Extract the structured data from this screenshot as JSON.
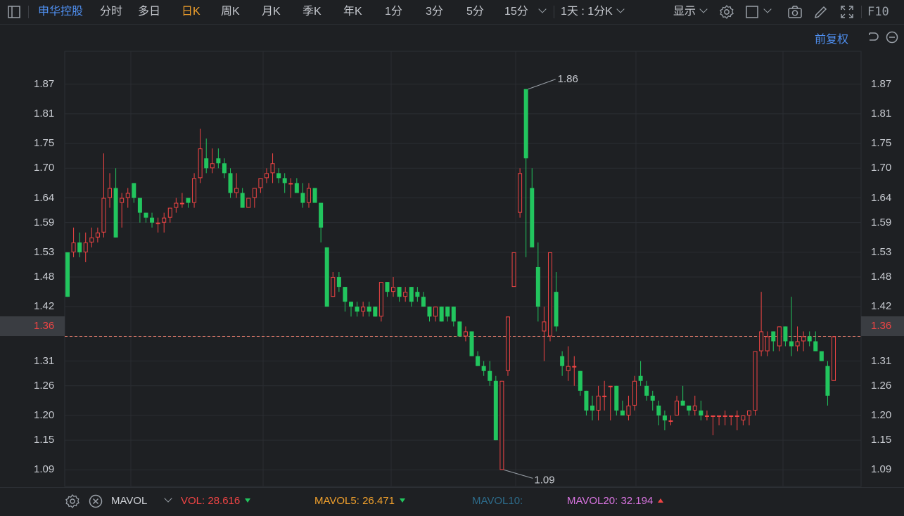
{
  "toolbar": {
    "stock_name": "申华控股",
    "periods": [
      "分时",
      "多日",
      "日K",
      "周K",
      "月K",
      "季K",
      "年K",
      "1分",
      "3分",
      "5分",
      "15分"
    ],
    "active_period": "日K",
    "multi_period": "1天 : 1分K",
    "display": "显示",
    "f10": "F10"
  },
  "adjust_label": "前复权",
  "current_price": "1.36",
  "colors": {
    "up": "#ef4444",
    "down": "#22c55e",
    "accent": "#f0a02c",
    "link": "#4f8ff0"
  },
  "chart_data": {
    "type": "candlestick",
    "title": "",
    "y_ticks": [
      "1.87",
      "1.81",
      "1.75",
      "1.70",
      "1.64",
      "1.59",
      "1.53",
      "1.48",
      "1.42",
      "1.36",
      "1.31",
      "1.26",
      "1.20",
      "1.15",
      "1.09"
    ],
    "ylim": [
      1.055,
      1.935
    ],
    "high_marker": "1.86",
    "low_marker": "1.09",
    "current_line": 1.36,
    "candles": [
      [
        1.53,
        1.44,
        1.53,
        1.44
      ],
      [
        1.53,
        1.55,
        1.58,
        1.52
      ],
      [
        1.55,
        1.53,
        1.57,
        1.52
      ],
      [
        1.53,
        1.55,
        1.57,
        1.51
      ],
      [
        1.55,
        1.56,
        1.58,
        1.54
      ],
      [
        1.56,
        1.57,
        1.58,
        1.55
      ],
      [
        1.57,
        1.64,
        1.73,
        1.56
      ],
      [
        1.64,
        1.66,
        1.69,
        1.62
      ],
      [
        1.66,
        1.56,
        1.7,
        1.56
      ],
      [
        1.63,
        1.64,
        1.65,
        1.58
      ],
      [
        1.64,
        1.65,
        1.66,
        1.62
      ],
      [
        1.67,
        1.64,
        1.67,
        1.63
      ],
      [
        1.64,
        1.61,
        1.64,
        1.59
      ],
      [
        1.61,
        1.6,
        1.61,
        1.59
      ],
      [
        1.6,
        1.59,
        1.61,
        1.58
      ],
      [
        1.59,
        1.59,
        1.6,
        1.57
      ],
      [
        1.59,
        1.6,
        1.61,
        1.57
      ],
      [
        1.6,
        1.62,
        1.62,
        1.59
      ],
      [
        1.62,
        1.63,
        1.64,
        1.61
      ],
      [
        1.63,
        1.63,
        1.65,
        1.62
      ],
      [
        1.64,
        1.63,
        1.64,
        1.62
      ],
      [
        1.63,
        1.68,
        1.69,
        1.62
      ],
      [
        1.68,
        1.74,
        1.78,
        1.67
      ],
      [
        1.72,
        1.7,
        1.76,
        1.69
      ],
      [
        1.7,
        1.71,
        1.74,
        1.69
      ],
      [
        1.72,
        1.71,
        1.74,
        1.7
      ],
      [
        1.71,
        1.69,
        1.72,
        1.68
      ],
      [
        1.69,
        1.65,
        1.7,
        1.64
      ],
      [
        1.65,
        1.66,
        1.69,
        1.64
      ],
      [
        1.65,
        1.62,
        1.66,
        1.62
      ],
      [
        1.62,
        1.64,
        1.64,
        1.62
      ],
      [
        1.64,
        1.66,
        1.66,
        1.62
      ],
      [
        1.66,
        1.68,
        1.68,
        1.65
      ],
      [
        1.68,
        1.69,
        1.7,
        1.67
      ],
      [
        1.69,
        1.71,
        1.73,
        1.67
      ],
      [
        1.69,
        1.68,
        1.7,
        1.67
      ],
      [
        1.68,
        1.67,
        1.69,
        1.65
      ],
      [
        1.67,
        1.67,
        1.68,
        1.64
      ],
      [
        1.67,
        1.65,
        1.68,
        1.65
      ],
      [
        1.65,
        1.63,
        1.67,
        1.62
      ],
      [
        1.63,
        1.66,
        1.67,
        1.62
      ],
      [
        1.66,
        1.63,
        1.66,
        1.63
      ],
      [
        1.63,
        1.58,
        1.63,
        1.55
      ],
      [
        1.54,
        1.42,
        1.54,
        1.42
      ],
      [
        1.44,
        1.48,
        1.49,
        1.44
      ],
      [
        1.48,
        1.46,
        1.49,
        1.45
      ],
      [
        1.46,
        1.43,
        1.46,
        1.41
      ],
      [
        1.43,
        1.42,
        1.43,
        1.4
      ],
      [
        1.42,
        1.41,
        1.43,
        1.4
      ],
      [
        1.41,
        1.42,
        1.43,
        1.4
      ],
      [
        1.42,
        1.41,
        1.43,
        1.4
      ],
      [
        1.42,
        1.4,
        1.42,
        1.4
      ],
      [
        1.4,
        1.47,
        1.47,
        1.39
      ],
      [
        1.47,
        1.45,
        1.47,
        1.44
      ],
      [
        1.45,
        1.46,
        1.48,
        1.44
      ],
      [
        1.46,
        1.44,
        1.46,
        1.43
      ],
      [
        1.44,
        1.45,
        1.46,
        1.43
      ],
      [
        1.46,
        1.43,
        1.46,
        1.42
      ],
      [
        1.45,
        1.44,
        1.46,
        1.43
      ],
      [
        1.44,
        1.42,
        1.45,
        1.42
      ],
      [
        1.42,
        1.4,
        1.42,
        1.39
      ],
      [
        1.4,
        1.42,
        1.42,
        1.39
      ],
      [
        1.42,
        1.39,
        1.42,
        1.39
      ],
      [
        1.42,
        1.4,
        1.42,
        1.39
      ],
      [
        1.42,
        1.39,
        1.42,
        1.38
      ],
      [
        1.39,
        1.36,
        1.39,
        1.36
      ],
      [
        1.36,
        1.37,
        1.38,
        1.35
      ],
      [
        1.37,
        1.32,
        1.37,
        1.32
      ],
      [
        1.32,
        1.3,
        1.33,
        1.3
      ],
      [
        1.3,
        1.29,
        1.31,
        1.28
      ],
      [
        1.29,
        1.27,
        1.31,
        1.26
      ],
      [
        1.27,
        1.15,
        1.28,
        1.15
      ],
      [
        1.09,
        1.27,
        1.27,
        1.09
      ],
      [
        1.29,
        1.4,
        1.4,
        1.28
      ],
      [
        1.46,
        1.53,
        1.53,
        1.46
      ],
      [
        1.61,
        1.69,
        1.7,
        1.6
      ],
      [
        1.86,
        1.72,
        1.86,
        1.52
      ],
      [
        1.66,
        1.54,
        1.7,
        1.54
      ],
      [
        1.5,
        1.42,
        1.55,
        1.39
      ],
      [
        1.37,
        1.39,
        1.42,
        1.31
      ],
      [
        1.36,
        1.53,
        1.53,
        1.35
      ],
      [
        1.45,
        1.38,
        1.49,
        1.37
      ],
      [
        1.32,
        1.3,
        1.33,
        1.28
      ],
      [
        1.29,
        1.3,
        1.34,
        1.27
      ],
      [
        1.3,
        1.3,
        1.32,
        1.26
      ],
      [
        1.29,
        1.25,
        1.29,
        1.24
      ],
      [
        1.25,
        1.21,
        1.25,
        1.2
      ],
      [
        1.22,
        1.21,
        1.24,
        1.19
      ],
      [
        1.21,
        1.24,
        1.26,
        1.19
      ],
      [
        1.24,
        1.24,
        1.27,
        1.21
      ],
      [
        1.26,
        1.26,
        1.26,
        1.19
      ],
      [
        1.26,
        1.21,
        1.26,
        1.2
      ],
      [
        1.21,
        1.2,
        1.23,
        1.2
      ],
      [
        1.2,
        1.22,
        1.24,
        1.19
      ],
      [
        1.22,
        1.27,
        1.28,
        1.21
      ],
      [
        1.28,
        1.27,
        1.31,
        1.26
      ],
      [
        1.26,
        1.24,
        1.27,
        1.23
      ],
      [
        1.24,
        1.23,
        1.25,
        1.21
      ],
      [
        1.22,
        1.2,
        1.23,
        1.18
      ],
      [
        1.2,
        1.19,
        1.21,
        1.17
      ],
      [
        1.19,
        1.19,
        1.2,
        1.18
      ],
      [
        1.2,
        1.23,
        1.24,
        1.2
      ],
      [
        1.23,
        1.22,
        1.26,
        1.22
      ],
      [
        1.22,
        1.21,
        1.22,
        1.2
      ],
      [
        1.21,
        1.22,
        1.24,
        1.2
      ],
      [
        1.21,
        1.2,
        1.23,
        1.19
      ],
      [
        1.2,
        1.2,
        1.21,
        1.19
      ],
      [
        1.2,
        1.2,
        1.2,
        1.16
      ],
      [
        1.2,
        1.2,
        1.2,
        1.18
      ],
      [
        1.2,
        1.2,
        1.21,
        1.18
      ],
      [
        1.2,
        1.2,
        1.2,
        1.18
      ],
      [
        1.2,
        1.2,
        1.21,
        1.17
      ],
      [
        1.19,
        1.2,
        1.2,
        1.18
      ],
      [
        1.2,
        1.21,
        1.21,
        1.18
      ],
      [
        1.21,
        1.33,
        1.33,
        1.2
      ],
      [
        1.33,
        1.37,
        1.45,
        1.32
      ],
      [
        1.33,
        1.36,
        1.37,
        1.32
      ],
      [
        1.37,
        1.35,
        1.37,
        1.33
      ],
      [
        1.34,
        1.38,
        1.38,
        1.33
      ],
      [
        1.38,
        1.35,
        1.38,
        1.34
      ],
      [
        1.35,
        1.34,
        1.44,
        1.32
      ],
      [
        1.34,
        1.35,
        1.38,
        1.33
      ],
      [
        1.35,
        1.36,
        1.37,
        1.33
      ],
      [
        1.36,
        1.35,
        1.37,
        1.34
      ],
      [
        1.35,
        1.33,
        1.37,
        1.33
      ],
      [
        1.33,
        1.31,
        1.33,
        1.31
      ],
      [
        1.3,
        1.24,
        1.31,
        1.22
      ],
      [
        1.27,
        1.36,
        1.36,
        1.27
      ]
    ]
  },
  "bottom": {
    "mavol": "MAVOL",
    "vol_label": "VOL:",
    "vol_value": "28.616",
    "mavol5_label": "MAVOL5:",
    "mavol5_value": "26.471",
    "mavol10_label": "MAVOL10:",
    "mavol20_label": "MAVOL20:",
    "mavol20_value": "32.194"
  }
}
